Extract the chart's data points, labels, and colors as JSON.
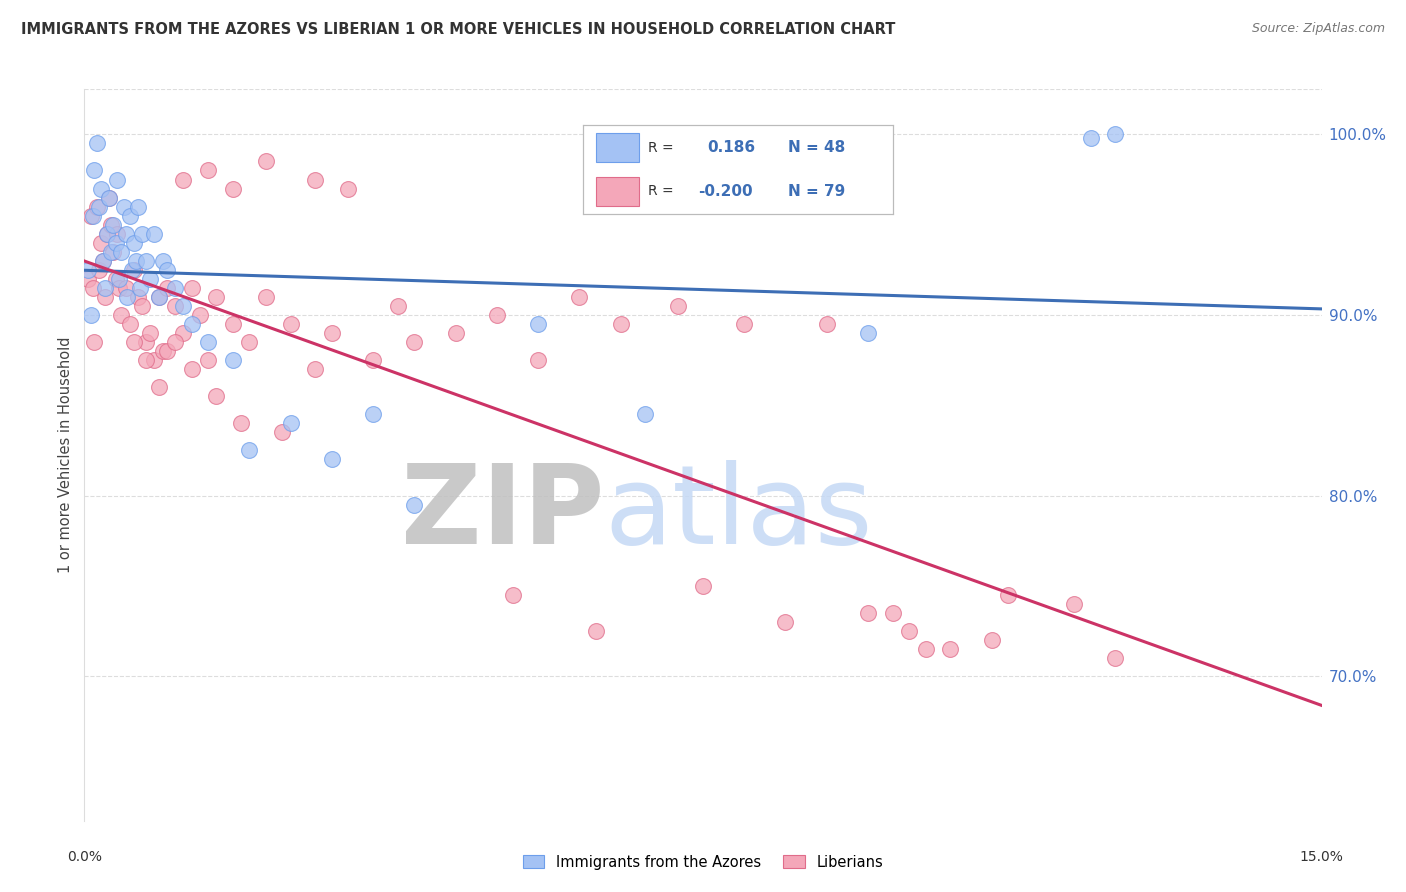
{
  "title": "IMMIGRANTS FROM THE AZORES VS LIBERIAN 1 OR MORE VEHICLES IN HOUSEHOLD CORRELATION CHART",
  "source": "Source: ZipAtlas.com",
  "ylabel": "1 or more Vehicles in Household",
  "xmin": 0.0,
  "xmax": 15.0,
  "ymin": 62.0,
  "ymax": 102.5,
  "blue_color": "#a4c2f4",
  "pink_color": "#f4a7b9",
  "blue_edge_color": "#6d9eeb",
  "pink_edge_color": "#e06c8a",
  "blue_line_color": "#3d6eb5",
  "pink_line_color": "#cc3366",
  "watermark_zip_color": "#c0c0c0",
  "watermark_atlas_color": "#c5d9f5",
  "grid_color": "#dddddd",
  "ytick_color": "#4472c4",
  "blue_x": [
    0.05,
    0.08,
    0.1,
    0.12,
    0.15,
    0.18,
    0.2,
    0.22,
    0.25,
    0.28,
    0.3,
    0.32,
    0.35,
    0.38,
    0.4,
    0.42,
    0.45,
    0.48,
    0.5,
    0.52,
    0.55,
    0.58,
    0.6,
    0.62,
    0.65,
    0.68,
    0.7,
    0.75,
    0.8,
    0.85,
    0.9,
    0.95,
    1.0,
    1.1,
    1.2,
    1.3,
    1.5,
    1.8,
    2.0,
    2.5,
    3.0,
    3.5,
    4.0,
    5.5,
    6.8,
    9.5,
    12.2,
    12.5
  ],
  "blue_y": [
    92.5,
    90.0,
    95.5,
    98.0,
    99.5,
    96.0,
    97.0,
    93.0,
    91.5,
    94.5,
    96.5,
    93.5,
    95.0,
    94.0,
    97.5,
    92.0,
    93.5,
    96.0,
    94.5,
    91.0,
    95.5,
    92.5,
    94.0,
    93.0,
    96.0,
    91.5,
    94.5,
    93.0,
    92.0,
    94.5,
    91.0,
    93.0,
    92.5,
    91.5,
    90.5,
    89.5,
    88.5,
    87.5,
    82.5,
    84.0,
    82.0,
    84.5,
    79.5,
    89.5,
    84.5,
    89.0,
    99.8,
    100.0
  ],
  "pink_x": [
    0.05,
    0.08,
    0.1,
    0.12,
    0.15,
    0.18,
    0.2,
    0.22,
    0.25,
    0.28,
    0.3,
    0.32,
    0.35,
    0.38,
    0.4,
    0.42,
    0.45,
    0.5,
    0.55,
    0.6,
    0.65,
    0.7,
    0.75,
    0.8,
    0.85,
    0.9,
    0.95,
    1.0,
    1.1,
    1.2,
    1.3,
    1.4,
    1.5,
    1.6,
    1.8,
    2.0,
    2.2,
    2.5,
    2.8,
    3.0,
    3.5,
    3.8,
    4.5,
    5.0,
    5.5,
    6.0,
    6.5,
    7.2,
    8.0,
    9.0,
    9.5,
    10.0,
    10.5,
    11.0,
    12.0,
    12.5,
    1.2,
    1.5,
    1.8,
    2.2,
    2.8,
    3.2,
    4.0,
    5.2,
    6.2,
    7.5,
    8.5,
    9.8,
    10.2,
    11.2,
    0.6,
    0.75,
    0.9,
    1.0,
    1.1,
    1.3,
    1.6,
    1.9,
    2.4
  ],
  "pink_y": [
    92.0,
    95.5,
    91.5,
    88.5,
    96.0,
    92.5,
    94.0,
    93.0,
    91.0,
    94.5,
    96.5,
    95.0,
    93.5,
    92.0,
    94.5,
    91.5,
    90.0,
    91.5,
    89.5,
    92.5,
    91.0,
    90.5,
    88.5,
    89.0,
    87.5,
    91.0,
    88.0,
    91.5,
    90.5,
    89.0,
    91.5,
    90.0,
    87.5,
    91.0,
    89.5,
    88.5,
    91.0,
    89.5,
    87.0,
    89.0,
    87.5,
    90.5,
    89.0,
    90.0,
    87.5,
    91.0,
    89.5,
    90.5,
    89.5,
    89.5,
    73.5,
    72.5,
    71.5,
    72.0,
    74.0,
    71.0,
    97.5,
    98.0,
    97.0,
    98.5,
    97.5,
    97.0,
    88.5,
    74.5,
    72.5,
    75.0,
    73.0,
    73.5,
    71.5,
    74.5,
    88.5,
    87.5,
    86.0,
    88.0,
    88.5,
    87.0,
    85.5,
    84.0,
    83.5
  ]
}
